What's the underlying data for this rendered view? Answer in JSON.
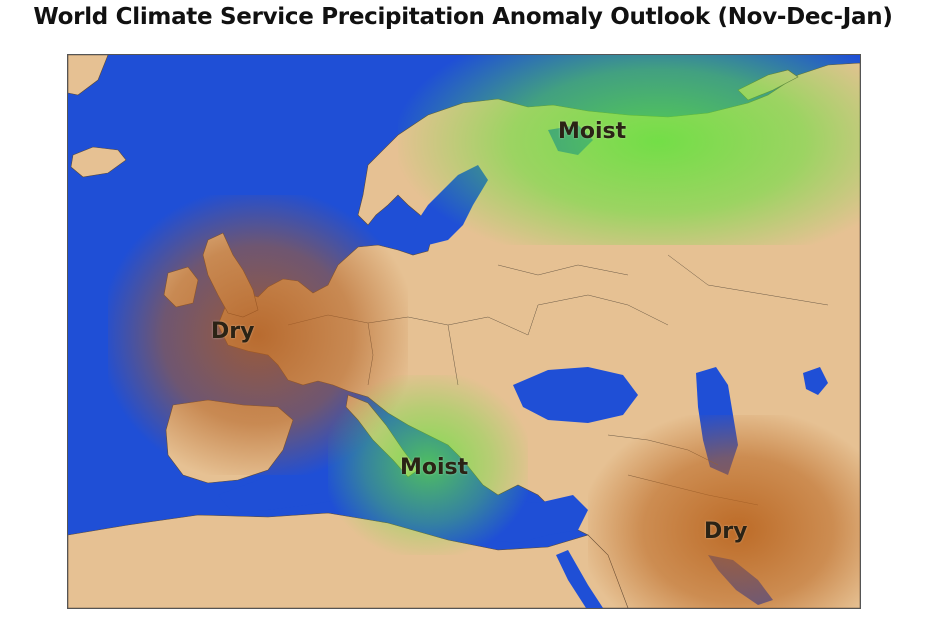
{
  "header": {
    "title": "World Climate Service Precipitation Anomaly Outlook (Nov-Dec-Jan)"
  },
  "map": {
    "ocean_color": "#1f4fd6",
    "land_color": "#e6c193",
    "regions": [
      {
        "id": "moist-russia",
        "label": "Moist",
        "anomaly": "moist"
      },
      {
        "id": "dry-western-europe",
        "label": "Dry",
        "anomaly": "dry"
      },
      {
        "id": "moist-mediterranean",
        "label": "Moist",
        "anomaly": "moist"
      },
      {
        "id": "dry-middle-east",
        "label": "Dry",
        "anomaly": "dry"
      }
    ],
    "colors": {
      "moist": "#5fe33a",
      "dry": "#b8621c"
    }
  }
}
